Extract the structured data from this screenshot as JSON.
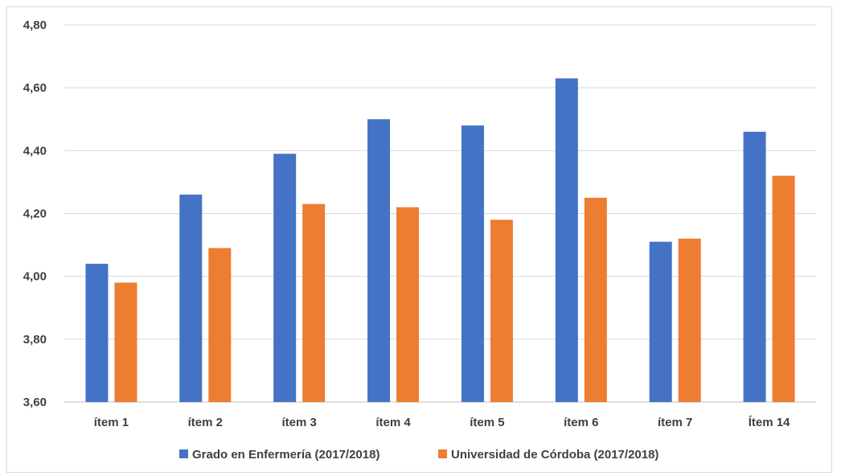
{
  "chart_data": {
    "type": "bar",
    "categories": [
      "ítem 1",
      "ítem 2",
      "ítem 3",
      "ítem 4",
      "ítem 5",
      "ítem 6",
      "ítem 7",
      "Ítem 14"
    ],
    "series": [
      {
        "name": "Grado en Enfermería (2017/2018)",
        "color": "#4472C4",
        "values": [
          4.04,
          4.26,
          4.39,
          4.5,
          4.48,
          4.63,
          4.11,
          4.46
        ]
      },
      {
        "name": "Universidad de Córdoba (2017/2018)",
        "color": "#ED7D31",
        "values": [
          3.98,
          4.09,
          4.23,
          4.22,
          4.18,
          4.25,
          4.12,
          4.32
        ]
      }
    ],
    "y_ticks": [
      "3,60",
      "3,80",
      "4,00",
      "4,20",
      "4,40",
      "4,60",
      "4,80"
    ],
    "ylim": [
      3.6,
      4.8
    ],
    "grid": true,
    "legend": "bottom"
  }
}
